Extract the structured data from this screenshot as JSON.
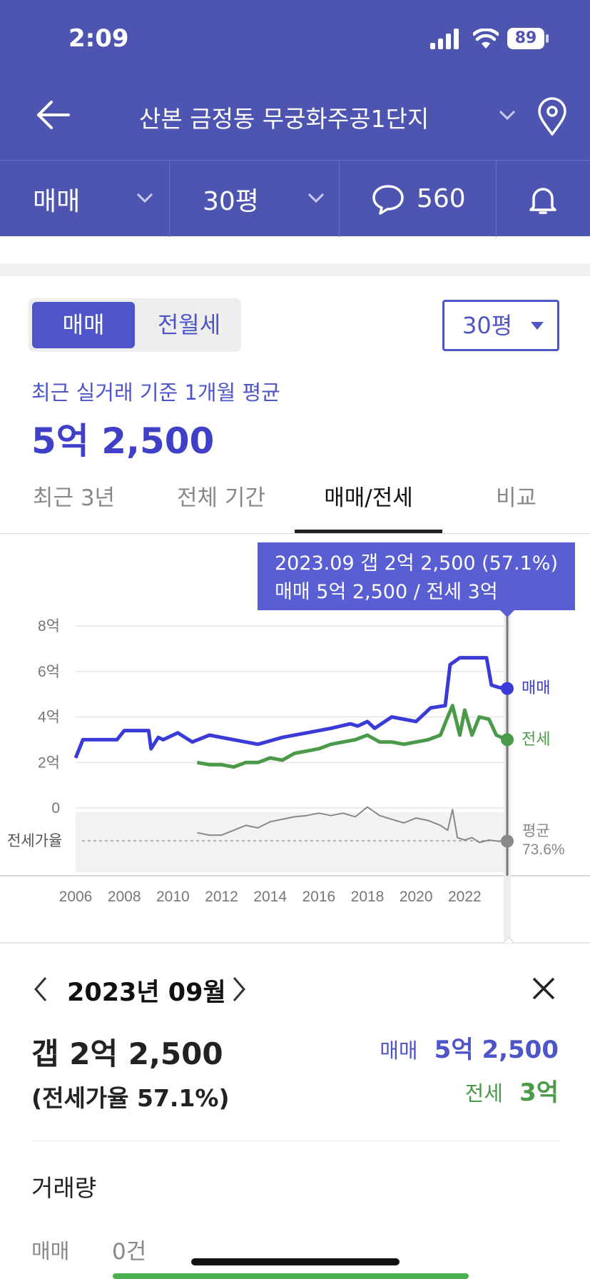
{
  "status": {
    "time": "2:09",
    "battery": "89"
  },
  "header": {
    "title": "산본 금정동 무궁화주공1단지"
  },
  "subbar": {
    "deal_type": "매매",
    "size": "30평",
    "comments": "560"
  },
  "segment": {
    "active": "매매",
    "inactive": "전월세"
  },
  "size_select": "30평",
  "summary": {
    "caption": "최근 실거래 기준 1개월 평균",
    "price": "5억 2,500"
  },
  "tabs": [
    "최근 3년",
    "전체 기간",
    "매매/전세",
    "비교"
  ],
  "tooltip": {
    "line1": "2023.09  갭 2억 2,500 (57.1%)",
    "line2": "매매 5억 2,500 / 전세 3억"
  },
  "colors": {
    "brand": "#4e55b0",
    "sale": "#3a3ad8",
    "jeonse": "#4a9a4a",
    "ratio": "#888888"
  },
  "chart_data": {
    "type": "line",
    "y_ticks": [
      "8억",
      "6억",
      "4억",
      "2억",
      "0"
    ],
    "ylim": [
      0,
      8
    ],
    "ratio_label": "전세가율",
    "x_ticks": [
      "2006",
      "2008",
      "2010",
      "2012",
      "2014",
      "2016",
      "2018",
      "2020",
      "2022"
    ],
    "xlim": [
      2006.0,
      2023.75
    ],
    "series": [
      {
        "name": "매매",
        "color": "#3a3ad8",
        "x": [
          2006.0,
          2006.3,
          2007.7,
          2008.0,
          2009.0,
          2009.1,
          2009.4,
          2009.6,
          2010.0,
          2010.2,
          2010.8,
          2011.5,
          2012.5,
          2013.5,
          2014.5,
          2015.5,
          2016.5,
          2017.3,
          2017.6,
          2018.0,
          2018.3,
          2019.0,
          2020.0,
          2020.6,
          2021.2,
          2021.4,
          2021.8,
          2022.5,
          2022.9,
          2023.1,
          2023.4,
          2023.75
        ],
        "values": [
          2.2,
          3.0,
          3.0,
          3.4,
          3.4,
          2.6,
          3.1,
          3.0,
          3.2,
          3.3,
          2.9,
          3.2,
          3.0,
          2.8,
          3.1,
          3.3,
          3.5,
          3.7,
          3.6,
          3.8,
          3.5,
          4.0,
          3.8,
          4.4,
          4.5,
          6.3,
          6.6,
          6.6,
          6.6,
          5.4,
          5.3,
          5.25
        ]
      },
      {
        "name": "전세",
        "color": "#4a9a4a",
        "x": [
          2011.0,
          2011.5,
          2012.0,
          2012.5,
          2013.0,
          2013.5,
          2014.0,
          2014.5,
          2015.0,
          2015.5,
          2016.0,
          2016.5,
          2017.0,
          2017.5,
          2018.0,
          2018.5,
          2019.0,
          2019.5,
          2020.0,
          2020.5,
          2021.0,
          2021.3,
          2021.5,
          2021.8,
          2022.0,
          2022.3,
          2022.6,
          2023.0,
          2023.3,
          2023.75
        ],
        "values": [
          2.0,
          1.9,
          1.9,
          1.8,
          2.0,
          2.0,
          2.2,
          2.1,
          2.4,
          2.5,
          2.6,
          2.8,
          2.9,
          3.0,
          3.2,
          2.9,
          2.9,
          2.8,
          2.9,
          3.0,
          3.2,
          4.0,
          4.5,
          3.2,
          4.3,
          3.2,
          4.0,
          3.9,
          3.2,
          3.0
        ]
      },
      {
        "name": "전세가율",
        "color": "#888888",
        "axis": "ratio",
        "x": [
          2011.0,
          2011.5,
          2012.0,
          2012.5,
          2013.0,
          2013.5,
          2014.0,
          2014.5,
          2015.0,
          2015.5,
          2016.0,
          2016.5,
          2017.0,
          2017.5,
          2018.0,
          2018.5,
          2019.0,
          2019.5,
          2020.0,
          2020.5,
          2021.0,
          2021.3,
          2021.5,
          2021.7,
          2022.0,
          2022.3,
          2022.6,
          2023.0,
          2023.4,
          2023.75
        ],
        "values": [
          64,
          62,
          62,
          66,
          70,
          68,
          73,
          75,
          77,
          78,
          80,
          78,
          80,
          77,
          85,
          78,
          75,
          72,
          76,
          74,
          70,
          66,
          83,
          60,
          58,
          60,
          56,
          58,
          57,
          57.1
        ]
      }
    ],
    "labels": {
      "sale": "매매",
      "jeonse": "전세",
      "avg": "평균",
      "avg_value": "73.6%"
    },
    "legend": "right"
  },
  "detail": {
    "month": "2023년 09월",
    "gap": "갭 2억 2,500",
    "ratio": "(전세가율 57.1%)",
    "sale_label": "매매",
    "sale_value": "5억 2,500",
    "jeonse_label": "전세",
    "jeonse_value": "3억"
  },
  "volume": {
    "title": "거래량",
    "sale_label": "매매",
    "sale_value": "0건"
  }
}
